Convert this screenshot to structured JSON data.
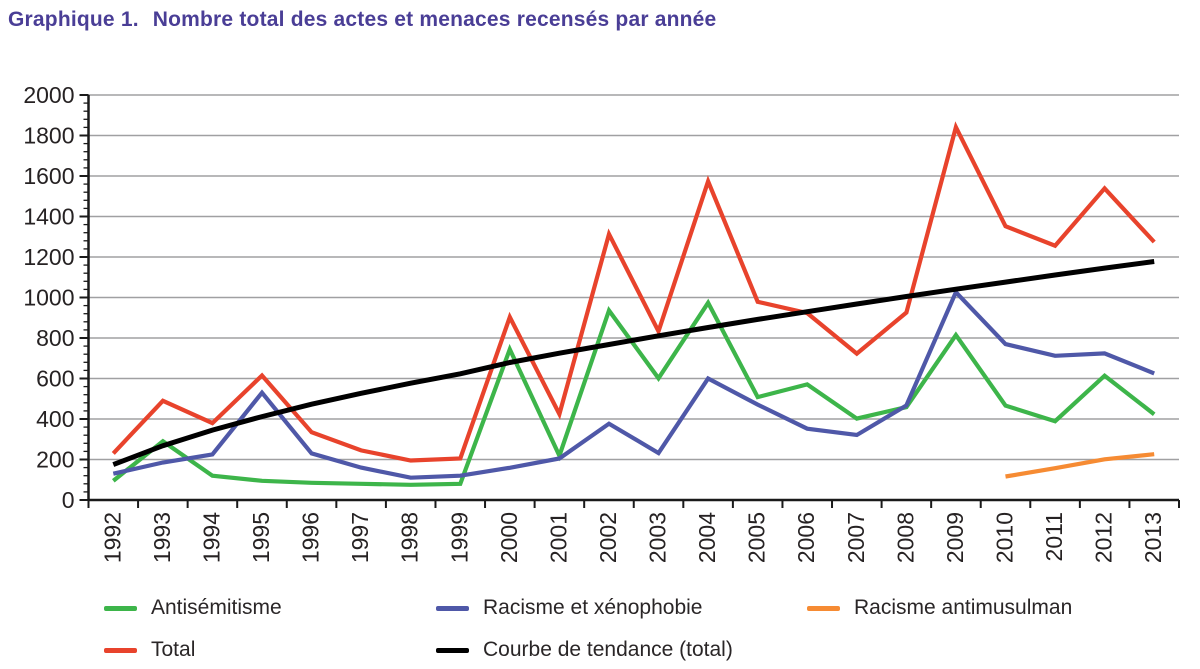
{
  "header": {
    "prefix": "Graphique 1.",
    "text": "Nombre total des actes et menaces recensés par année"
  },
  "colors": {
    "title": "#4A3E96",
    "axis": "#1A1A1A",
    "axis_text": "#262223",
    "grid": "#A0A0A2",
    "background": "#FFFFFF",
    "antisemitisme": "#3DB54A",
    "racisme_xenophobie": "#4F58A8",
    "racisme_antimusulman": "#F68B33",
    "total": "#E8432C",
    "tendance": "#000000"
  },
  "chart_data": {
    "type": "line",
    "title": "Graphique 1. Nombre total des actes et menaces recensés par année",
    "xlabel": "",
    "ylabel": "",
    "x": [
      "1992",
      "1993",
      "1994",
      "1995",
      "1996",
      "1997",
      "1998",
      "1999",
      "2000",
      "2001",
      "2002",
      "2003",
      "2004",
      "2005",
      "2006",
      "2007",
      "2008",
      "2009",
      "2010",
      "2011",
      "2012",
      "2013"
    ],
    "ylim": [
      0,
      2000
    ],
    "yticks": [
      0,
      200,
      400,
      600,
      800,
      1000,
      1200,
      1400,
      1600,
      1800,
      2000
    ],
    "y_minor_tick_step": 40,
    "grid": "horizontal",
    "legend_position": "bottom",
    "x_label_rotation": 90,
    "series": [
      {
        "name": "Antisémitisme",
        "color": "#3DB54A",
        "values": [
          95,
          290,
          120,
          95,
          85,
          80,
          75,
          80,
          744,
          219,
          936,
          601,
          974,
          508,
          571,
          402,
          459,
          815,
          466,
          389,
          614,
          423
        ]
      },
      {
        "name": "Racisme et xénophobie",
        "color": "#4F58A8",
        "values": [
          130,
          185,
          225,
          530,
          230,
          160,
          110,
          120,
          159,
          205,
          377,
          232,
          600,
          471,
          352,
          321,
          467,
          1026,
          770,
          712,
          724,
          625
        ]
      },
      {
        "name": "Racisme antimusulman",
        "color": "#F68B33",
        "values": [
          null,
          null,
          null,
          null,
          null,
          null,
          null,
          null,
          null,
          null,
          null,
          null,
          null,
          null,
          null,
          null,
          null,
          null,
          116,
          157,
          201,
          226
        ]
      },
      {
        "name": "Total",
        "color": "#E8432C",
        "values": [
          230,
          490,
          380,
          615,
          335,
          245,
          195,
          205,
          903,
          424,
          1313,
          833,
          1574,
          979,
          923,
          723,
          926,
          1841,
          1352,
          1256,
          1539,
          1274
        ]
      },
      {
        "name": "Courbe de tendance (total)",
        "color": "#000000",
        "role": "trend",
        "values": [
          175,
          268,
          345,
          412,
          473,
          527,
          577,
          623,
          679,
          725,
          768,
          811,
          852,
          892,
          930,
          968,
          1005,
          1041,
          1076,
          1111,
          1145,
          1178
        ]
      }
    ]
  }
}
